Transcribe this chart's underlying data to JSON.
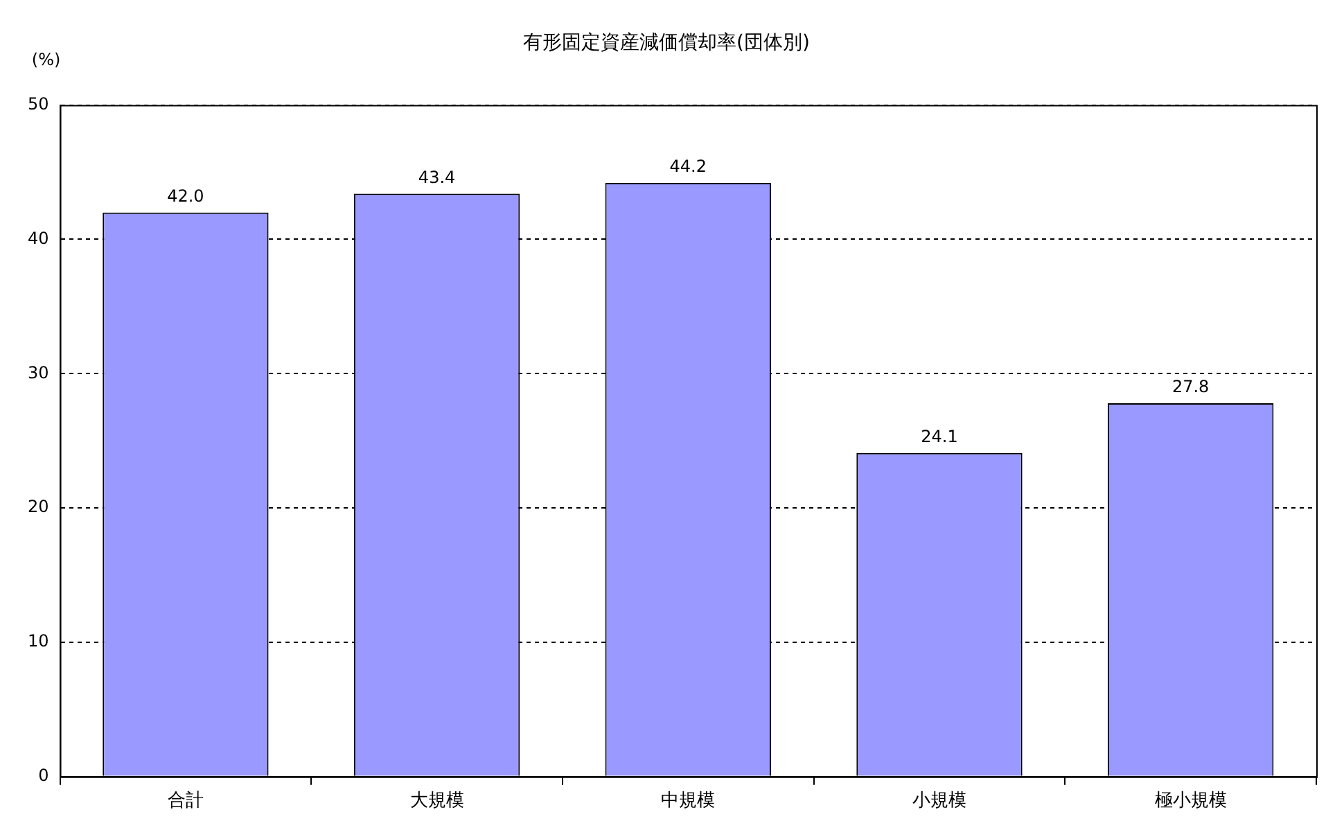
{
  "chart_data": {
    "type": "bar",
    "title": "有形固定資産減価償却率(団体別)",
    "ylabel": "(%)",
    "categories": [
      "合計",
      "大規模",
      "中規模",
      "小規模",
      "極小規模"
    ],
    "values": [
      42.0,
      43.4,
      44.2,
      24.1,
      27.8
    ],
    "value_labels": [
      "42.0",
      "43.4",
      "44.2",
      "24.1",
      "27.8"
    ],
    "color": "#9999ff",
    "ylim": [
      0,
      50
    ],
    "yticks": [
      0,
      10,
      20,
      30,
      40,
      50
    ],
    "grid": "y",
    "legend": false
  }
}
